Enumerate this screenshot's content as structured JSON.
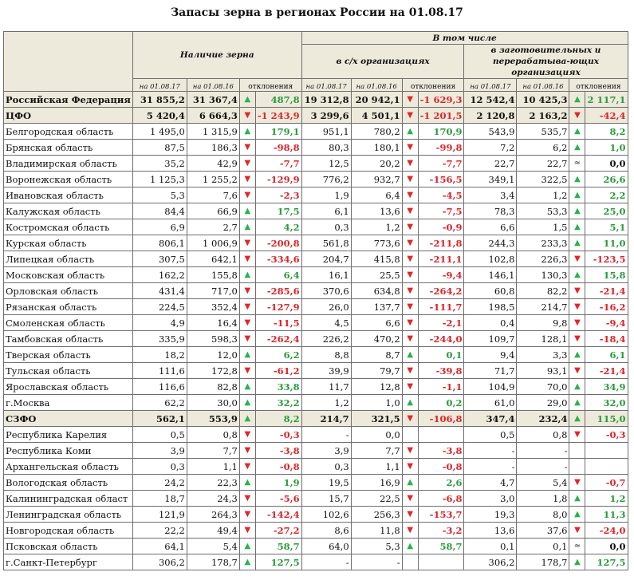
{
  "title": "Запасы зерна в регионах России на 01.08.17",
  "header": {
    "group_total": "Наличие зерна",
    "group_incl": "В том числе",
    "group_agri": "в с/х организациях",
    "group_proc": "в заготовительных и перерабатыва-ющих организациях",
    "date_2017": "на 01.08.17",
    "date_2016": "на 01.08.16",
    "deviation": "отклонения"
  },
  "colors": {
    "up": "#2bb24c",
    "down": "#e0262a",
    "summary_bg": "#eeeadb"
  },
  "rows": [
    {
      "name": "Российская Федерация",
      "summary": true,
      "c1": "31 855,2",
      "c2": "31 367,4",
      "a1": "up",
      "d1": "487,8",
      "s1": "pos",
      "c3": "19 312,8",
      "c4": "20 942,1",
      "a2": "down",
      "d2": "-1 629,3",
      "s2": "neg",
      "c5": "12 542,4",
      "c6": "10 425,3",
      "a3": "up",
      "d3": "2 117,1",
      "s3": "pos"
    },
    {
      "name": "ЦФО",
      "summary": true,
      "c1": "5 420,4",
      "c2": "6 664,3",
      "a1": "down",
      "d1": "-1 243,9",
      "s1": "neg",
      "c3": "3 299,6",
      "c4": "4 501,1",
      "a2": "down",
      "d2": "-1 201,5",
      "s2": "neg",
      "c5": "2 120,8",
      "c6": "2 163,2",
      "a3": "down",
      "d3": "-42,4",
      "s3": "neg"
    },
    {
      "name": "Белгородская область",
      "c1": "1 495,0",
      "c2": "1 315,9",
      "a1": "up",
      "d1": "179,1",
      "s1": "pos",
      "c3": "951,1",
      "c4": "780,2",
      "a2": "up",
      "d2": "170,9",
      "s2": "pos",
      "c5": "543,9",
      "c6": "535,7",
      "a3": "up",
      "d3": "8,2",
      "s3": "pos"
    },
    {
      "name": "Брянская область",
      "c1": "87,5",
      "c2": "186,3",
      "a1": "down",
      "d1": "-98,8",
      "s1": "neg",
      "c3": "80,3",
      "c4": "180,1",
      "a2": "down",
      "d2": "-99,8",
      "s2": "neg",
      "c5": "7,2",
      "c6": "6,2",
      "a3": "up",
      "d3": "1,0",
      "s3": "pos"
    },
    {
      "name": "Владимирская область",
      "c1": "35,2",
      "c2": "42,9",
      "a1": "down",
      "d1": "-7,7",
      "s1": "neg",
      "c3": "12,5",
      "c4": "20,2",
      "a2": "down",
      "d2": "-7,7",
      "s2": "neg",
      "c5": "22,7",
      "c6": "22,7",
      "a3": "eq",
      "d3": "0,0",
      "s3": "zero"
    },
    {
      "name": "Воронежская область",
      "c1": "1 125,3",
      "c2": "1 255,2",
      "a1": "down",
      "d1": "-129,9",
      "s1": "neg",
      "c3": "776,2",
      "c4": "932,7",
      "a2": "down",
      "d2": "-156,5",
      "s2": "neg",
      "c5": "349,1",
      "c6": "322,5",
      "a3": "up",
      "d3": "26,6",
      "s3": "pos"
    },
    {
      "name": "Ивановская область",
      "c1": "5,3",
      "c2": "7,6",
      "a1": "down",
      "d1": "-2,3",
      "s1": "neg",
      "c3": "1,9",
      "c4": "6,4",
      "a2": "down",
      "d2": "-4,5",
      "s2": "neg",
      "c5": "3,4",
      "c6": "1,2",
      "a3": "up",
      "d3": "2,2",
      "s3": "pos"
    },
    {
      "name": "Калужская область",
      "c1": "84,4",
      "c2": "66,9",
      "a1": "up",
      "d1": "17,5",
      "s1": "pos",
      "c3": "6,1",
      "c4": "13,6",
      "a2": "down",
      "d2": "-7,5",
      "s2": "neg",
      "c5": "78,3",
      "c6": "53,3",
      "a3": "up",
      "d3": "25,0",
      "s3": "pos"
    },
    {
      "name": "Костромская область",
      "c1": "6,9",
      "c2": "2,7",
      "a1": "up",
      "d1": "4,2",
      "s1": "pos",
      "c3": "0,3",
      "c4": "1,2",
      "a2": "down",
      "d2": "-0,9",
      "s2": "neg",
      "c5": "6,6",
      "c6": "1,5",
      "a3": "up",
      "d3": "5,1",
      "s3": "pos"
    },
    {
      "name": "Курская область",
      "c1": "806,1",
      "c2": "1 006,9",
      "a1": "down",
      "d1": "-200,8",
      "s1": "neg",
      "c3": "561,8",
      "c4": "773,6",
      "a2": "down",
      "d2": "-211,8",
      "s2": "neg",
      "c5": "244,3",
      "c6": "233,3",
      "a3": "up",
      "d3": "11,0",
      "s3": "pos"
    },
    {
      "name": "Липецкая область",
      "c1": "307,5",
      "c2": "642,1",
      "a1": "down",
      "d1": "-334,6",
      "s1": "neg",
      "c3": "204,7",
      "c4": "415,8",
      "a2": "down",
      "d2": "-211,1",
      "s2": "neg",
      "c5": "102,8",
      "c6": "226,3",
      "a3": "down",
      "d3": "-123,5",
      "s3": "neg"
    },
    {
      "name": "Московская область",
      "c1": "162,2",
      "c2": "155,8",
      "a1": "up",
      "d1": "6,4",
      "s1": "pos",
      "c3": "16,1",
      "c4": "25,5",
      "a2": "down",
      "d2": "-9,4",
      "s2": "neg",
      "c5": "146,1",
      "c6": "130,3",
      "a3": "up",
      "d3": "15,8",
      "s3": "pos"
    },
    {
      "name": "Орловская область",
      "c1": "431,4",
      "c2": "717,0",
      "a1": "down",
      "d1": "-285,6",
      "s1": "neg",
      "c3": "370,6",
      "c4": "634,8",
      "a2": "down",
      "d2": "-264,2",
      "s2": "neg",
      "c5": "60,8",
      "c6": "82,2",
      "a3": "down",
      "d3": "-21,4",
      "s3": "neg"
    },
    {
      "name": "Рязанская область",
      "c1": "224,5",
      "c2": "352,4",
      "a1": "down",
      "d1": "-127,9",
      "s1": "neg",
      "c3": "26,0",
      "c4": "137,7",
      "a2": "down",
      "d2": "-111,7",
      "s2": "neg",
      "c5": "198,5",
      "c6": "214,7",
      "a3": "down",
      "d3": "-16,2",
      "s3": "neg"
    },
    {
      "name": "Смоленская область",
      "c1": "4,9",
      "c2": "16,4",
      "a1": "down",
      "d1": "-11,5",
      "s1": "neg",
      "c3": "4,5",
      "c4": "6,6",
      "a2": "down",
      "d2": "-2,1",
      "s2": "neg",
      "c5": "0,4",
      "c6": "9,8",
      "a3": "down",
      "d3": "-9,4",
      "s3": "neg"
    },
    {
      "name": "Тамбовская область",
      "c1": "335,9",
      "c2": "598,3",
      "a1": "down",
      "d1": "-262,4",
      "s1": "neg",
      "c3": "226,2",
      "c4": "470,2",
      "a2": "down",
      "d2": "-244,0",
      "s2": "neg",
      "c5": "109,7",
      "c6": "128,1",
      "a3": "down",
      "d3": "-18,4",
      "s3": "neg"
    },
    {
      "name": "Тверская область",
      "c1": "18,2",
      "c2": "12,0",
      "a1": "up",
      "d1": "6,2",
      "s1": "pos",
      "c3": "8,8",
      "c4": "8,7",
      "a2": "up",
      "d2": "0,1",
      "s2": "pos",
      "c5": "9,4",
      "c6": "3,3",
      "a3": "up",
      "d3": "6,1",
      "s3": "pos"
    },
    {
      "name": "Тульская область",
      "c1": "111,6",
      "c2": "172,8",
      "a1": "down",
      "d1": "-61,2",
      "s1": "neg",
      "c3": "39,9",
      "c4": "79,7",
      "a2": "down",
      "d2": "-39,8",
      "s2": "neg",
      "c5": "71,7",
      "c6": "93,1",
      "a3": "down",
      "d3": "-21,4",
      "s3": "neg"
    },
    {
      "name": "Ярославская область",
      "c1": "116,6",
      "c2": "82,8",
      "a1": "up",
      "d1": "33,8",
      "s1": "pos",
      "c3": "11,7",
      "c4": "12,8",
      "a2": "down",
      "d2": "-1,1",
      "s2": "neg",
      "c5": "104,9",
      "c6": "70,0",
      "a3": "up",
      "d3": "34,9",
      "s3": "pos"
    },
    {
      "name": "г.Москва",
      "c1": "62,2",
      "c2": "30,0",
      "a1": "up",
      "d1": "32,2",
      "s1": "pos",
      "c3": "1,2",
      "c4": "1,0",
      "a2": "up",
      "d2": "0,2",
      "s2": "pos",
      "c5": "61,0",
      "c6": "29,0",
      "a3": "up",
      "d3": "32,0",
      "s3": "pos"
    },
    {
      "name": "СЗФО",
      "summary": true,
      "c1": "562,1",
      "c2": "553,9",
      "a1": "up",
      "d1": "8,2",
      "s1": "pos",
      "c3": "214,7",
      "c4": "321,5",
      "a2": "down",
      "d2": "-106,8",
      "s2": "neg",
      "c5": "347,4",
      "c6": "232,4",
      "a3": "up",
      "d3": "115,0",
      "s3": "pos"
    },
    {
      "name": "Республика Карелия",
      "c1": "0,5",
      "c2": "0,8",
      "a1": "down",
      "d1": "-0,3",
      "s1": "neg",
      "c3": "-",
      "c4": "0,0",
      "a2": "",
      "d2": "",
      "s2": "",
      "c5": "0,5",
      "c6": "0,8",
      "a3": "down",
      "d3": "-0,3",
      "s3": "neg"
    },
    {
      "name": "Республика Коми",
      "c1": "3,9",
      "c2": "7,7",
      "a1": "down",
      "d1": "-3,8",
      "s1": "neg",
      "c3": "3,9",
      "c4": "7,7",
      "a2": "down",
      "d2": "-3,8",
      "s2": "neg",
      "c5": "-",
      "c6": "-",
      "a3": "",
      "d3": "",
      "s3": ""
    },
    {
      "name": "Архангельская область",
      "c1": "0,3",
      "c2": "1,1",
      "a1": "down",
      "d1": "-0,8",
      "s1": "neg",
      "c3": "0,3",
      "c4": "1,1",
      "a2": "down",
      "d2": "-0,8",
      "s2": "neg",
      "c5": "-",
      "c6": "-",
      "a3": "",
      "d3": "",
      "s3": ""
    },
    {
      "name": "Вологодская область",
      "c1": "24,2",
      "c2": "22,3",
      "a1": "up",
      "d1": "1,9",
      "s1": "pos",
      "c3": "19,5",
      "c4": "16,9",
      "a2": "up",
      "d2": "2,6",
      "s2": "pos",
      "c5": "4,7",
      "c6": "5,4",
      "a3": "down",
      "d3": "-0,7",
      "s3": "neg"
    },
    {
      "name": "Калининградская област",
      "c1": "18,7",
      "c2": "24,3",
      "a1": "down",
      "d1": "-5,6",
      "s1": "neg",
      "c3": "15,7",
      "c4": "22,5",
      "a2": "down",
      "d2": "-6,8",
      "s2": "neg",
      "c5": "3,0",
      "c6": "1,8",
      "a3": "up",
      "d3": "1,2",
      "s3": "pos"
    },
    {
      "name": "Ленинградская область",
      "c1": "121,9",
      "c2": "264,3",
      "a1": "down",
      "d1": "-142,4",
      "s1": "neg",
      "c3": "102,6",
      "c4": "256,3",
      "a2": "down",
      "d2": "-153,7",
      "s2": "neg",
      "c5": "19,3",
      "c6": "8,0",
      "a3": "up",
      "d3": "11,3",
      "s3": "pos"
    },
    {
      "name": "Новгородская область",
      "c1": "22,2",
      "c2": "49,4",
      "a1": "down",
      "d1": "-27,2",
      "s1": "neg",
      "c3": "8,6",
      "c4": "11,8",
      "a2": "down",
      "d2": "-3,2",
      "s2": "neg",
      "c5": "13,6",
      "c6": "37,6",
      "a3": "down",
      "d3": "-24,0",
      "s3": "neg"
    },
    {
      "name": "Псковская область",
      "c1": "64,1",
      "c2": "5,4",
      "a1": "up",
      "d1": "58,7",
      "s1": "pos",
      "c3": "64,0",
      "c4": "5,3",
      "a2": "up",
      "d2": "58,7",
      "s2": "pos",
      "c5": "0,1",
      "c6": "0,1",
      "a3": "eq",
      "d3": "0,0",
      "s3": "zero"
    },
    {
      "name": "г.Санкт-Петербург",
      "c1": "306,2",
      "c2": "178,7",
      "a1": "up",
      "d1": "127,5",
      "s1": "pos",
      "c3": "-",
      "c4": "-",
      "a2": "",
      "d2": "",
      "s2": "",
      "c5": "306,2",
      "c6": "178,7",
      "a3": "up",
      "d3": "127,5",
      "s3": "pos"
    }
  ]
}
